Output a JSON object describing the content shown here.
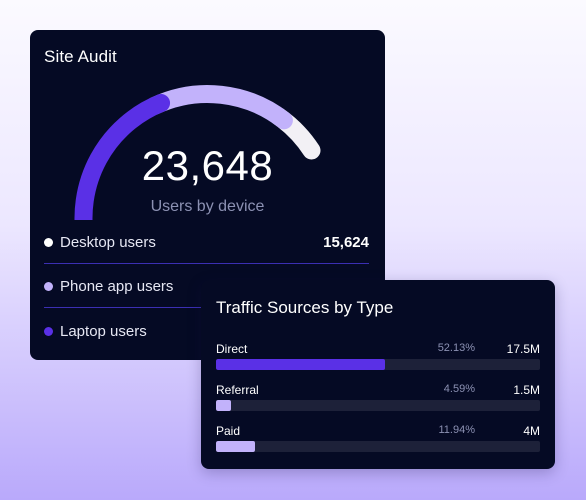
{
  "site_audit": {
    "title": "Site Audit",
    "total_users": "23,648",
    "caption": "Users by device",
    "gauge_fill_fraction": 0.5,
    "segments": [
      {
        "label": "Desktop users",
        "value": "15,624",
        "color": "#ffffff"
      },
      {
        "label": "Phone app users",
        "value": "",
        "color": "#c2b2fb"
      },
      {
        "label": "Laptop users",
        "value": "",
        "color": "#5a30e6"
      }
    ],
    "colors": {
      "gauge_primary": "#5a30e6",
      "gauge_secondary": "#c2b2fb",
      "gauge_remainder": "#f2f0f5"
    }
  },
  "traffic_sources": {
    "title": "Traffic Sources by Type",
    "sources": [
      {
        "name": "Direct",
        "percent": "52.13%",
        "total": "17.5M",
        "fill_fraction": 0.5213,
        "color": "#5a30e6"
      },
      {
        "name": "Referral",
        "percent": "4.59%",
        "total": "1.5M",
        "fill_fraction": 0.0459,
        "color": "#c2b2fb"
      },
      {
        "name": "Paid",
        "percent": "11.94%",
        "total": "4M",
        "fill_fraction": 0.1194,
        "color": "#c2b2fb"
      }
    ]
  }
}
